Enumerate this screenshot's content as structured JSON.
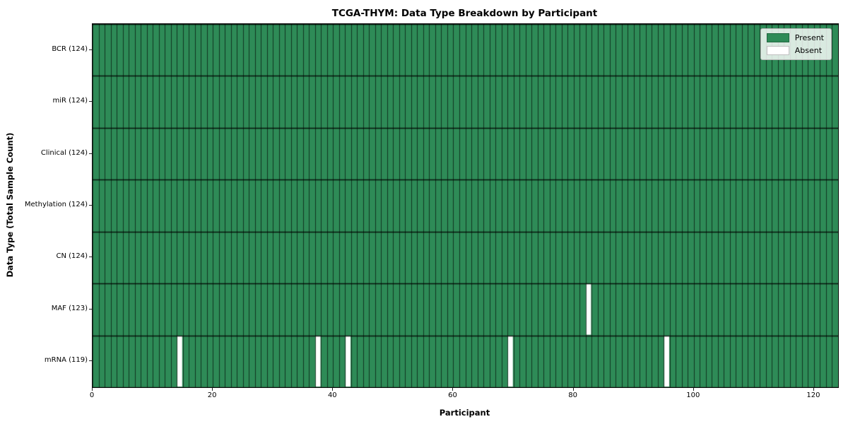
{
  "chart_data": {
    "type": "heatmap",
    "title": "TCGA-THYM: Data Type Breakdown by Participant",
    "xlabel": "Participant",
    "ylabel": "Data Type (Total Sample Count)",
    "x_ticks": [
      0,
      20,
      40,
      60,
      80,
      100,
      120
    ],
    "x_range": [
      0,
      124
    ],
    "n_participants": 124,
    "grid": true,
    "rows": [
      {
        "label": "BCR (124)",
        "data_type": "BCR",
        "present_count": 124,
        "absent_participants": []
      },
      {
        "label": "miR (124)",
        "data_type": "miR",
        "present_count": 124,
        "absent_participants": []
      },
      {
        "label": "Clinical (124)",
        "data_type": "Clinical",
        "present_count": 124,
        "absent_participants": []
      },
      {
        "label": "Methylation (124)",
        "data_type": "Methylation",
        "present_count": 124,
        "absent_participants": []
      },
      {
        "label": "CN (124)",
        "data_type": "CN",
        "present_count": 124,
        "absent_participants": []
      },
      {
        "label": "MAF (123)",
        "data_type": "MAF",
        "present_count": 123,
        "absent_participants": [
          82
        ]
      },
      {
        "label": "mRNA (119)",
        "data_type": "mRNA",
        "present_count": 119,
        "absent_participants": [
          14,
          37,
          42,
          69,
          95
        ]
      }
    ],
    "legend": {
      "position": "upper right",
      "items": [
        {
          "label": "Present",
          "color": "#2e8b57"
        },
        {
          "label": "Absent",
          "color": "#ffffff"
        }
      ]
    },
    "colors": {
      "present": "#2e8b57",
      "absent": "#ffffff",
      "cell_edge": "rgba(0,0,0,0.62)",
      "row_edge": "rgba(0,0,0,0.85)",
      "background": "#ffffff"
    }
  }
}
